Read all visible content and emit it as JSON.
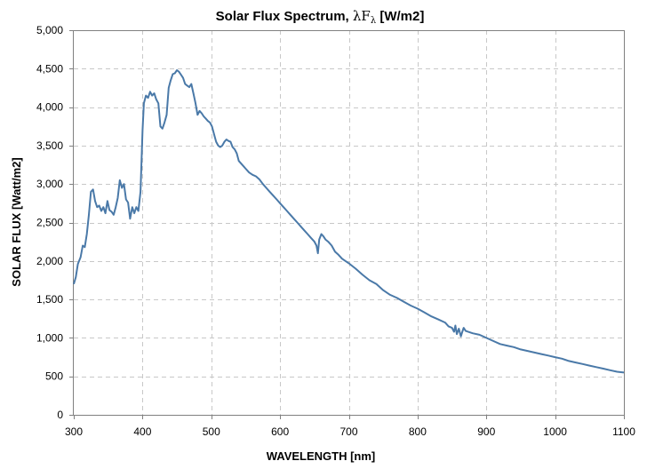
{
  "chart_data": {
    "type": "line",
    "title": {
      "prefix": "Solar Flux Spectrum, ",
      "symbol": "λF",
      "subscript": "λ",
      "suffix": " [W/m2]"
    },
    "xlabel": "WAVELENGTH [nm]",
    "ylabel": "SOLAR FLUX [Watt/m2]",
    "xlim": [
      300,
      1100
    ],
    "ylim": [
      0,
      5000
    ],
    "grid": true,
    "x_ticks": [
      300,
      400,
      500,
      600,
      700,
      800,
      900,
      1000,
      1100
    ],
    "y_ticks": [
      0,
      500,
      1000,
      1500,
      2000,
      2500,
      3000,
      3500,
      4000,
      4500,
      5000
    ],
    "x_tick_labels": [
      "300",
      "400",
      "500",
      "600",
      "700",
      "800",
      "900",
      "1000",
      "1100"
    ],
    "y_tick_labels": [
      "0",
      "500",
      "1,000",
      "1,500",
      "2,000",
      "2,500",
      "3,000",
      "3,500",
      "4,000",
      "4,500",
      "5,000"
    ],
    "series_color": "#4a79a8",
    "series": [
      {
        "x": [
          300,
          303,
          306,
          310,
          313,
          316,
          319,
          322,
          325,
          328,
          331,
          334,
          337,
          340,
          343,
          346,
          349,
          352,
          355,
          358,
          361,
          364,
          367,
          370,
          373,
          376,
          379,
          382,
          385,
          388,
          391,
          394,
          397,
          400,
          402,
          405,
          408,
          411,
          414,
          417,
          420,
          423,
          426,
          429,
          432,
          435,
          438,
          441,
          444,
          447,
          450,
          453,
          456,
          459,
          462,
          465,
          468,
          471,
          474,
          477,
          480,
          483,
          486,
          489,
          492,
          495,
          498,
          501,
          504,
          507,
          510,
          513,
          516,
          519,
          522,
          525,
          528,
          531,
          534,
          537,
          540,
          545,
          550,
          555,
          560,
          565,
          570,
          575,
          580,
          585,
          590,
          595,
          600,
          605,
          610,
          615,
          620,
          625,
          630,
          635,
          640,
          645,
          650,
          653,
          655,
          657,
          660,
          663,
          666,
          670,
          675,
          680,
          685,
          690,
          695,
          700,
          710,
          720,
          730,
          740,
          750,
          760,
          770,
          780,
          790,
          800,
          810,
          820,
          830,
          840,
          845,
          850,
          853,
          855,
          857,
          860,
          863,
          865,
          867,
          870,
          880,
          890,
          900,
          910,
          920,
          930,
          940,
          950,
          960,
          970,
          980,
          990,
          1000,
          1010,
          1020,
          1030,
          1040,
          1050,
          1060,
          1070,
          1080,
          1090,
          1100
        ],
        "values": [
          1700,
          1790,
          1960,
          2050,
          2200,
          2180,
          2350,
          2600,
          2900,
          2930,
          2780,
          2700,
          2720,
          2650,
          2700,
          2620,
          2780,
          2660,
          2640,
          2600,
          2700,
          2820,
          3050,
          2950,
          3000,
          2800,
          2760,
          2550,
          2700,
          2620,
          2700,
          2650,
          2900,
          3700,
          4050,
          4150,
          4120,
          4200,
          4150,
          4180,
          4100,
          4050,
          3750,
          3720,
          3800,
          3900,
          4250,
          4350,
          4430,
          4440,
          4480,
          4460,
          4420,
          4380,
          4300,
          4280,
          4260,
          4300,
          4180,
          4050,
          3900,
          3950,
          3920,
          3880,
          3850,
          3820,
          3800,
          3750,
          3650,
          3550,
          3500,
          3480,
          3500,
          3550,
          3580,
          3560,
          3550,
          3480,
          3450,
          3400,
          3300,
          3250,
          3200,
          3150,
          3120,
          3100,
          3060,
          3000,
          2950,
          2900,
          2850,
          2800,
          2750,
          2700,
          2650,
          2600,
          2550,
          2500,
          2450,
          2400,
          2350,
          2300,
          2250,
          2200,
          2100,
          2280,
          2350,
          2320,
          2280,
          2250,
          2200,
          2120,
          2080,
          2030,
          2000,
          1970,
          1900,
          1820,
          1750,
          1700,
          1620,
          1560,
          1520,
          1470,
          1420,
          1380,
          1330,
          1280,
          1240,
          1200,
          1150,
          1130,
          1080,
          1160,
          1050,
          1120,
          1020,
          1080,
          1130,
          1090,
          1060,
          1040,
          1000,
          960,
          920,
          900,
          880,
          850,
          830,
          810,
          790,
          770,
          750,
          730,
          700,
          680,
          660,
          640,
          620,
          600,
          580,
          560,
          550
        ]
      }
    ]
  }
}
